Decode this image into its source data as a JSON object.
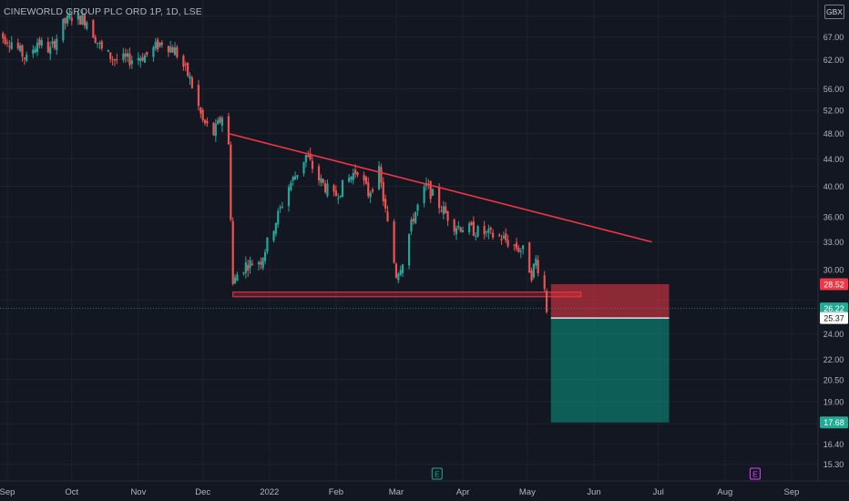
{
  "header": {
    "symbol_title": "CINEWORLD GROUP PLC ORD 1P, 1D, LSE",
    "currency": "GBX"
  },
  "chart_data": {
    "type": "candlestick",
    "y_scale": "log",
    "ylim": [
      15.0,
      73.0
    ],
    "x_range": [
      "2021-09-01",
      "2022-09-10"
    ],
    "grid": true,
    "y_ticks": [
      15.3,
      16.4,
      17.6,
      19.0,
      20.5,
      22.0,
      24.0,
      27.0,
      30.0,
      33.0,
      36.0,
      40.0,
      44.0,
      48.0,
      52.0,
      56.0,
      62.0,
      67.0,
      72.0
    ],
    "y_tick_labels": [
      "15.30",
      "16.40",
      "",
      "19.00",
      "20.50",
      "22.00",
      "24.00",
      "",
      "30.00",
      "33.00",
      "36.00",
      "40.00",
      "44.00",
      "48.00",
      "52.00",
      "56.00",
      "62.00",
      "67.00",
      ""
    ],
    "x_ticks": [
      {
        "date": "2021-09-01",
        "label": "Sep"
      },
      {
        "date": "2021-10-01",
        "label": "Oct"
      },
      {
        "date": "2021-11-01",
        "label": "Nov"
      },
      {
        "date": "2021-12-01",
        "label": "Dec"
      },
      {
        "date": "2022-01-01",
        "label": "2022"
      },
      {
        "date": "2022-02-01",
        "label": "Feb"
      },
      {
        "date": "2022-03-01",
        "label": "Mar"
      },
      {
        "date": "2022-04-01",
        "label": "Apr"
      },
      {
        "date": "2022-05-01",
        "label": "May"
      },
      {
        "date": "2022-06-01",
        "label": "Jun"
      },
      {
        "date": "2022-07-01",
        "label": "Jul"
      },
      {
        "date": "2022-08-01",
        "label": "Aug"
      },
      {
        "date": "2022-09-01",
        "label": "Sep"
      }
    ],
    "price_path": [
      [
        "2021-08-26",
        68
      ],
      [
        "2021-09-03",
        66
      ],
      [
        "2021-09-10",
        62
      ],
      [
        "2021-09-15",
        66
      ],
      [
        "2021-09-21",
        64
      ],
      [
        "2021-09-27",
        70
      ],
      [
        "2021-10-01",
        72
      ],
      [
        "2021-10-08",
        71
      ],
      [
        "2021-10-15",
        64
      ],
      [
        "2021-10-21",
        62
      ],
      [
        "2021-10-28",
        62
      ],
      [
        "2021-11-05",
        63
      ],
      [
        "2021-11-12",
        66
      ],
      [
        "2021-11-18",
        64
      ],
      [
        "2021-11-25",
        58
      ],
      [
        "2021-12-01",
        50
      ],
      [
        "2021-12-06",
        48
      ],
      [
        "2021-12-10",
        51
      ],
      [
        "2021-12-13",
        46
      ],
      [
        "2021-12-15",
        28.5
      ],
      [
        "2021-12-17",
        29.5
      ],
      [
        "2021-12-21",
        30.5
      ],
      [
        "2021-12-28",
        31.0
      ],
      [
        "2022-01-04",
        35.5
      ],
      [
        "2022-01-10",
        40.0
      ],
      [
        "2022-01-14",
        42.0
      ],
      [
        "2022-01-18",
        44.5
      ],
      [
        "2022-01-24",
        41.0
      ],
      [
        "2022-01-31",
        38.5
      ],
      [
        "2022-02-04",
        40.0
      ],
      [
        "2022-02-11",
        42.5
      ],
      [
        "2022-02-16",
        39.0
      ],
      [
        "2022-02-21",
        42.0
      ],
      [
        "2022-02-25",
        35.0
      ],
      [
        "2022-03-01",
        29.5
      ],
      [
        "2022-03-04",
        31.0
      ],
      [
        "2022-03-09",
        36.0
      ],
      [
        "2022-03-15",
        40.0
      ],
      [
        "2022-03-21",
        37.5
      ],
      [
        "2022-03-28",
        35.0
      ],
      [
        "2022-04-04",
        34.5
      ],
      [
        "2022-04-11",
        34.0
      ],
      [
        "2022-04-19",
        33.5
      ],
      [
        "2022-04-25",
        32.5
      ],
      [
        "2022-04-29",
        32.0
      ],
      [
        "2022-05-03",
        29.5
      ],
      [
        "2022-05-05",
        31.0
      ],
      [
        "2022-05-09",
        28.0
      ],
      [
        "2022-05-10",
        26.2
      ]
    ],
    "annotations": {
      "trendline": {
        "from": [
          "2021-12-13",
          48.0
        ],
        "to": [
          "2022-06-28",
          33.0
        ]
      },
      "support_zone": {
        "from": "2021-12-15",
        "to": "2022-05-26",
        "low": 27.3,
        "high": 27.75
      },
      "short_position": {
        "from": "2022-05-12",
        "to": "2022-07-06",
        "entry": 25.37,
        "stop": 28.52,
        "target": 17.68
      }
    },
    "last_price": 26.22,
    "price_labels": [
      {
        "value": 28.52,
        "text": "28.52",
        "color": "#f23645",
        "text_color": "#ffffff"
      },
      {
        "value": 26.22,
        "text": "26.22",
        "color": "#22ab94",
        "text_color": "#ffffff"
      },
      {
        "value": 25.37,
        "text": "25.37",
        "color": "#ffffff",
        "text_color": "#131722"
      },
      {
        "value": 17.68,
        "text": "17.68",
        "color": "#22ab94",
        "text_color": "#ffffff"
      }
    ],
    "event_markers": [
      {
        "date": "2022-03-20",
        "label": "E",
        "color": "#22ab94"
      },
      {
        "date": "2022-08-15",
        "label": "E",
        "color": "#e040fb"
      }
    ]
  },
  "colors": {
    "background": "#131722",
    "grid": "#1e222d",
    "up": "#26a69a",
    "down": "#ef5350",
    "trendline": "#f23645",
    "axis_text": "#b2b5be"
  }
}
